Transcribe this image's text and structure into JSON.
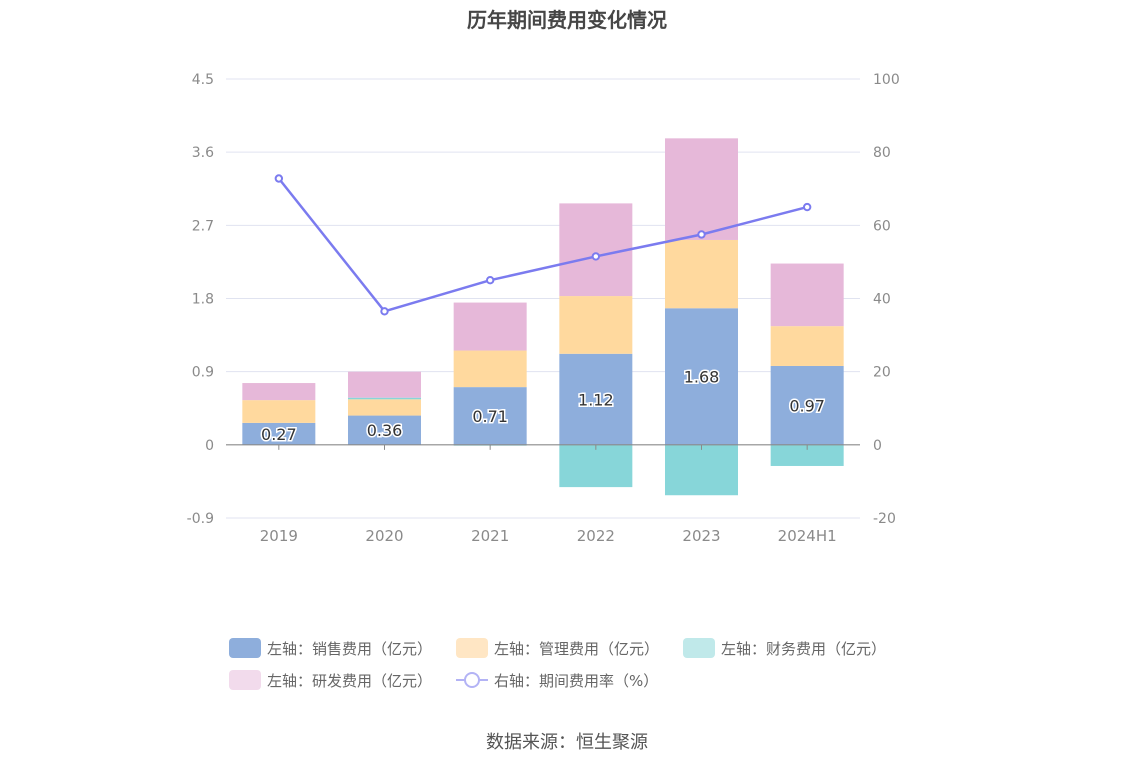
{
  "chart_data": {
    "type": "bar",
    "title": "历年期间费用变化情况",
    "categories": [
      "2019",
      "2020",
      "2021",
      "2022",
      "2023",
      "2024H1"
    ],
    "series": [
      {
        "name": "左轴：销售费用（亿元）",
        "axis": "left",
        "kind": "bar",
        "color": "#8eaedc",
        "values": [
          0.27,
          0.36,
          0.71,
          1.12,
          1.68,
          0.97
        ],
        "labels": [
          "0.27",
          "0.36",
          "0.71",
          "1.12",
          "1.68",
          "0.97"
        ]
      },
      {
        "name": "左轴：管理费用（亿元）",
        "axis": "left",
        "kind": "bar",
        "color": "#ffd99e",
        "values": [
          0.28,
          0.2,
          0.45,
          0.71,
          0.84,
          0.49
        ]
      },
      {
        "name": "左轴：财务费用（亿元）",
        "axis": "left",
        "kind": "bar",
        "color": "#87d6d9",
        "values": [
          0.0,
          0.02,
          -0.01,
          -0.52,
          -0.62,
          -0.26
        ]
      },
      {
        "name": "左轴：研发费用（亿元）",
        "axis": "left",
        "kind": "bar",
        "color": "#e6b8d9",
        "values": [
          0.21,
          0.32,
          0.59,
          1.14,
          1.25,
          0.77
        ]
      },
      {
        "name": "右轴：期间费用率（%）",
        "axis": "right",
        "kind": "line",
        "color": "#7b7bef",
        "values": [
          72.8,
          36.5,
          45.0,
          51.5,
          57.5,
          65.0
        ]
      }
    ],
    "y_left": {
      "ticks": [
        -0.9,
        0,
        0.9,
        1.8,
        2.7,
        3.6,
        4.5
      ],
      "tick_labels": [
        "-0.9",
        "0",
        "0.9",
        "1.8",
        "2.7",
        "3.6",
        "4.5"
      ],
      "range": [
        -0.9,
        4.5
      ]
    },
    "y_right": {
      "ticks": [
        -20,
        0,
        20,
        40,
        60,
        80,
        100
      ],
      "tick_labels": [
        "-20",
        "0",
        "20",
        "40",
        "60",
        "80",
        "100"
      ],
      "range": [
        -20,
        100
      ]
    },
    "legend_position": "bottom",
    "grid": true
  },
  "source_text": "数据来源：恒生聚源"
}
